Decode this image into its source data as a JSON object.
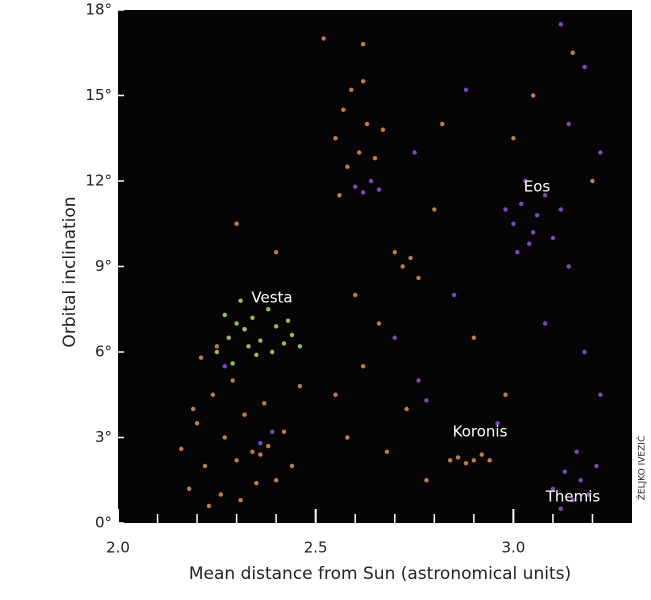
{
  "chart_data": {
    "type": "scatter",
    "x_label": "Mean distance from Sun (astronomical units)",
    "y_label": "Orbital inclination",
    "annotations": [
      "Vesta",
      "Eos",
      "Koronis",
      "Themis"
    ],
    "credit": "ŽELJKO IVEZIĆ",
    "background": "#050505",
    "xlim": [
      2.0,
      3.3
    ],
    "ylim": [
      0,
      18
    ],
    "xticks": [
      {
        "value": 2.0,
        "label": "2.0"
      },
      {
        "value": 2.5,
        "label": "2.5"
      },
      {
        "value": 3.0,
        "label": "3.0"
      }
    ],
    "xminorticks": [
      2.1,
      2.2,
      2.3,
      2.4,
      2.6,
      2.7,
      2.8,
      2.9,
      3.1,
      3.2
    ],
    "yticks": [
      {
        "value": 0,
        "label": "0°"
      },
      {
        "value": 3,
        "label": "3°"
      },
      {
        "value": 6,
        "label": "6°"
      },
      {
        "value": 9,
        "label": "9°"
      },
      {
        "value": 12,
        "label": "12°"
      },
      {
        "value": 15,
        "label": "15°"
      },
      {
        "value": 18,
        "label": "18°"
      }
    ],
    "grid": false,
    "series": [
      {
        "color": "#e0883a",
        "x": [
          2.18,
          2.2,
          2.22,
          2.24,
          2.26,
          2.27,
          2.29,
          2.3,
          2.32,
          2.34,
          2.36,
          2.38,
          2.4,
          2.42,
          2.21,
          2.25,
          2.19,
          2.23,
          2.31,
          2.37,
          2.44,
          2.46,
          2.16,
          2.35,
          2.55,
          2.57,
          2.59,
          2.61,
          2.63,
          2.65,
          2.67,
          2.58,
          2.62,
          2.56,
          2.55,
          2.58,
          2.62,
          2.6,
          2.66,
          2.7,
          2.72,
          2.74,
          2.76,
          2.68,
          2.73,
          2.78,
          2.84,
          2.86,
          2.88,
          2.9,
          2.92,
          2.94,
          2.8,
          2.9,
          3.05,
          3.15,
          2.98,
          2.52,
          2.4,
          2.3,
          3.2,
          3.0,
          2.62,
          2.82
        ],
        "values": [
          1.2,
          3.5,
          2.0,
          4.5,
          1.0,
          3.0,
          5.0,
          2.2,
          3.8,
          2.5,
          2.4,
          2.7,
          1.5,
          3.2,
          5.8,
          6.2,
          4.0,
          0.6,
          0.8,
          4.2,
          2.0,
          4.8,
          2.6,
          1.4,
          13.5,
          14.5,
          15.2,
          13.0,
          14.0,
          12.8,
          13.8,
          12.5,
          15.5,
          11.5,
          4.5,
          3.0,
          5.5,
          8.0,
          7.0,
          9.5,
          9.0,
          9.3,
          8.6,
          2.5,
          4.0,
          1.5,
          2.2,
          2.3,
          2.1,
          2.2,
          2.4,
          2.2,
          11.0,
          6.5,
          15.0,
          16.5,
          4.5,
          17.0,
          9.5,
          10.5,
          12.0,
          13.5,
          16.8,
          14.0
        ]
      },
      {
        "color": "#8a4fd8",
        "x": [
          3.0,
          3.02,
          3.04,
          3.06,
          3.08,
          3.01,
          3.03,
          3.05,
          2.98,
          3.1,
          3.12,
          3.14,
          3.1,
          3.13,
          3.15,
          3.17,
          3.19,
          3.21,
          3.12,
          3.16,
          2.6,
          2.62,
          2.64,
          2.66,
          2.76,
          2.78,
          2.7,
          2.36,
          2.39,
          2.32,
          2.27,
          2.88,
          3.14,
          3.18,
          3.22,
          3.08,
          3.18,
          2.96,
          3.22,
          2.85,
          3.12,
          2.75
        ],
        "values": [
          10.5,
          11.2,
          9.8,
          10.8,
          11.5,
          9.5,
          12.0,
          10.2,
          11.0,
          10.0,
          11.0,
          9.0,
          1.2,
          1.8,
          0.8,
          1.5,
          1.0,
          2.0,
          0.5,
          2.5,
          11.8,
          11.6,
          12.0,
          11.7,
          5.0,
          4.3,
          6.5,
          2.8,
          3.2,
          6.8,
          5.5,
          15.2,
          14.0,
          16.0,
          13.0,
          7.0,
          6.0,
          3.5,
          4.5,
          8.0,
          17.5,
          13.0
        ]
      },
      {
        "color": "#a6d83a",
        "x": [
          2.28,
          2.3,
          2.32,
          2.34,
          2.36,
          2.38,
          2.4,
          2.42,
          2.44,
          2.31,
          2.35,
          2.27,
          2.39,
          2.33,
          2.43,
          2.25,
          2.46,
          2.29
        ],
        "values": [
          6.5,
          7.0,
          6.8,
          7.2,
          6.4,
          7.5,
          6.9,
          6.3,
          6.6,
          7.8,
          5.9,
          7.3,
          6.0,
          6.2,
          7.1,
          6.0,
          6.2,
          5.6
        ]
      }
    ]
  }
}
